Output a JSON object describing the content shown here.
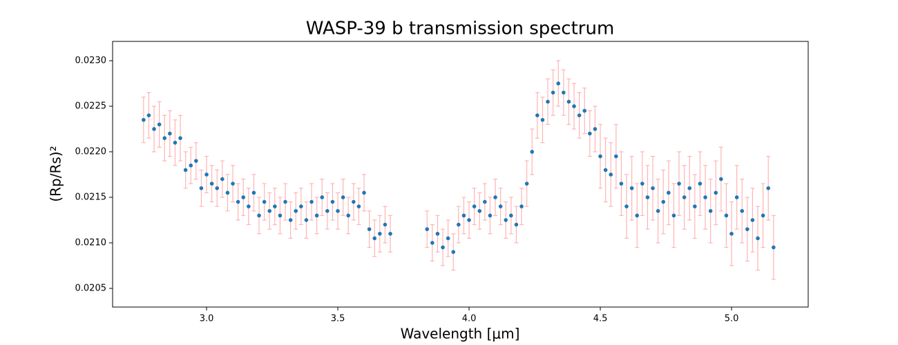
{
  "chart_data": {
    "type": "errorbar",
    "title": "WASP-39 b transmission spectrum",
    "xlabel": "Wavelength [μm]",
    "ylabel": "(Rp/Rs)²",
    "marker_color": "#1f77b4",
    "error_color": "#ffb3b3",
    "xlim": [
      2.642,
      5.292
    ],
    "ylim": [
      0.020295,
      0.023212
    ],
    "xticks": [
      {
        "value": 3.0,
        "label": "3.0"
      },
      3.5,
      {
        "value": 4.0,
        "label": "4.0"
      },
      4.5,
      {
        "value": 5.0,
        "label": "5.0"
      }
    ],
    "yticks": [
      0.0205,
      {
        "value": 0.021,
        "label": "0.0210"
      },
      0.0215,
      {
        "value": 0.022,
        "label": "0.0220"
      },
      0.0225,
      {
        "value": 0.023,
        "label": "0.0230"
      }
    ],
    "x": [
      2.76,
      2.78,
      2.8,
      2.82,
      2.84,
      2.86,
      2.88,
      2.9,
      2.92,
      2.94,
      2.96,
      2.98,
      3.0,
      3.02,
      3.04,
      3.06,
      3.08,
      3.1,
      3.12,
      3.14,
      3.16,
      3.18,
      3.2,
      3.22,
      3.24,
      3.26,
      3.28,
      3.3,
      3.32,
      3.34,
      3.36,
      3.38,
      3.4,
      3.42,
      3.44,
      3.46,
      3.48,
      3.5,
      3.52,
      3.54,
      3.56,
      3.58,
      3.6,
      3.62,
      3.64,
      3.66,
      3.68,
      3.7,
      3.84,
      3.86,
      3.88,
      3.9,
      3.92,
      3.94,
      3.96,
      3.98,
      4.0,
      4.02,
      4.04,
      4.06,
      4.08,
      4.1,
      4.12,
      4.14,
      4.16,
      4.18,
      4.2,
      4.22,
      4.24,
      4.26,
      4.28,
      4.3,
      4.32,
      4.34,
      4.36,
      4.38,
      4.4,
      4.42,
      4.44,
      4.46,
      4.48,
      4.5,
      4.52,
      4.54,
      4.56,
      4.58,
      4.6,
      4.62,
      4.64,
      4.66,
      4.68,
      4.7,
      4.72,
      4.74,
      4.76,
      4.78,
      4.8,
      4.82,
      4.84,
      4.86,
      4.88,
      4.9,
      4.92,
      4.94,
      4.96,
      4.98,
      5.0,
      5.02,
      5.04,
      5.06,
      5.08,
      5.1,
      5.12,
      5.14,
      5.16
    ],
    "values": [
      0.02235,
      0.0224,
      0.02225,
      0.0223,
      0.02215,
      0.0222,
      0.0221,
      0.02215,
      0.0218,
      0.02185,
      0.0219,
      0.0216,
      0.02175,
      0.02165,
      0.0216,
      0.0217,
      0.02155,
      0.02165,
      0.02145,
      0.0215,
      0.0214,
      0.02155,
      0.0213,
      0.02145,
      0.02135,
      0.0214,
      0.0213,
      0.02145,
      0.02125,
      0.02135,
      0.0214,
      0.02125,
      0.02145,
      0.0213,
      0.0215,
      0.02135,
      0.02145,
      0.02135,
      0.0215,
      0.0213,
      0.02145,
      0.0214,
      0.02155,
      0.02115,
      0.02105,
      0.0211,
      0.0212,
      0.0211,
      0.02115,
      0.021,
      0.0211,
      0.02095,
      0.02105,
      0.0209,
      0.0212,
      0.0213,
      0.02125,
      0.0214,
      0.02135,
      0.02145,
      0.0213,
      0.0215,
      0.0214,
      0.02125,
      0.0213,
      0.0212,
      0.0214,
      0.02165,
      0.022,
      0.0224,
      0.02235,
      0.02255,
      0.02265,
      0.02275,
      0.02265,
      0.02255,
      0.0225,
      0.0224,
      0.02245,
      0.0222,
      0.02225,
      0.02195,
      0.0218,
      0.02175,
      0.02195,
      0.02165,
      0.0214,
      0.0216,
      0.0213,
      0.02165,
      0.0215,
      0.0216,
      0.02135,
      0.02145,
      0.02155,
      0.0213,
      0.02165,
      0.0215,
      0.0216,
      0.0214,
      0.02165,
      0.0215,
      0.02135,
      0.02155,
      0.0217,
      0.0213,
      0.0211,
      0.0215,
      0.02135,
      0.02115,
      0.02125,
      0.02105,
      0.0213,
      0.0216,
      0.02095
    ],
    "errors": [
      0.00025,
      0.00025,
      0.00025,
      0.00025,
      0.00025,
      0.00025,
      0.00025,
      0.00025,
      0.0002,
      0.0002,
      0.0002,
      0.0002,
      0.0002,
      0.0002,
      0.0002,
      0.0002,
      0.0002,
      0.0002,
      0.0002,
      0.0002,
      0.0002,
      0.0002,
      0.0002,
      0.0002,
      0.0002,
      0.0002,
      0.0002,
      0.0002,
      0.0002,
      0.0002,
      0.0002,
      0.0002,
      0.0002,
      0.0002,
      0.0002,
      0.0002,
      0.0002,
      0.0002,
      0.0002,
      0.0002,
      0.0002,
      0.0002,
      0.0002,
      0.0002,
      0.0002,
      0.0002,
      0.0002,
      0.0002,
      0.0002,
      0.0002,
      0.0002,
      0.0002,
      0.0002,
      0.0002,
      0.0002,
      0.0002,
      0.0002,
      0.0002,
      0.0002,
      0.0002,
      0.0002,
      0.0002,
      0.0002,
      0.0002,
      0.0002,
      0.0002,
      0.0002,
      0.00025,
      0.00025,
      0.00025,
      0.00025,
      0.00025,
      0.00025,
      0.00025,
      0.00025,
      0.00025,
      0.00025,
      0.00025,
      0.00025,
      0.00025,
      0.00025,
      0.00035,
      0.00035,
      0.00035,
      0.00035,
      0.00035,
      0.00035,
      0.00035,
      0.00035,
      0.00035,
      0.00035,
      0.00035,
      0.00035,
      0.00035,
      0.00035,
      0.00035,
      0.00035,
      0.00035,
      0.00035,
      0.00035,
      0.00035,
      0.00035,
      0.00035,
      0.00035,
      0.00035,
      0.00035,
      0.00035,
      0.00035,
      0.00035,
      0.00035,
      0.00035,
      0.00035,
      0.00035,
      0.00035,
      0.00035
    ]
  }
}
